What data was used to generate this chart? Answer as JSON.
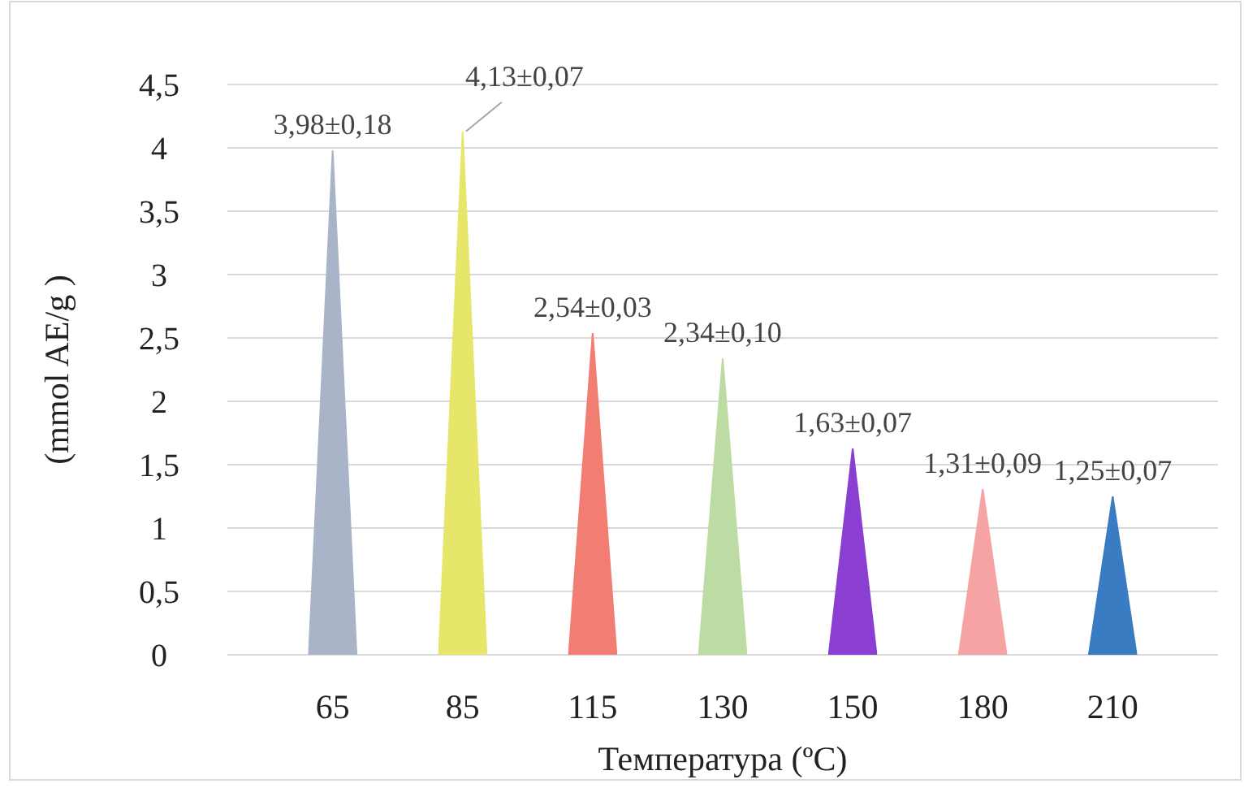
{
  "chart_data": {
    "type": "bar",
    "xlabel": "Температура (ºC)",
    "ylabel": "(mmol AE/g )",
    "categories": [
      "65",
      "85",
      "115",
      "130",
      "150",
      "180",
      "210"
    ],
    "values": [
      3.98,
      4.13,
      2.54,
      2.34,
      1.63,
      1.31,
      1.25
    ],
    "colors": [
      "#a9b4c8",
      "#e6e66a",
      "#f27d72",
      "#bcdca4",
      "#8b3fd2",
      "#f5a3a3",
      "#3a7cc2"
    ],
    "value_labels": [
      "3,98±0,18",
      "4,13±0,07",
      "2,54±0,03",
      "2,34±0,10",
      "1,63±0,07",
      "1,31±0,09",
      "1,25±0,07"
    ],
    "ylim": [
      0,
      4.5
    ],
    "yticks": [
      0,
      {
        "value": 0.5,
        "label": "0,5"
      },
      1,
      {
        "value": 1.5,
        "label": "1,5"
      },
      2,
      {
        "value": 2.5,
        "label": "2,5"
      },
      3,
      {
        "value": 3.5,
        "label": "3,5"
      },
      4,
      {
        "value": 4.5,
        "label": "4,5"
      }
    ],
    "grid": "y"
  }
}
